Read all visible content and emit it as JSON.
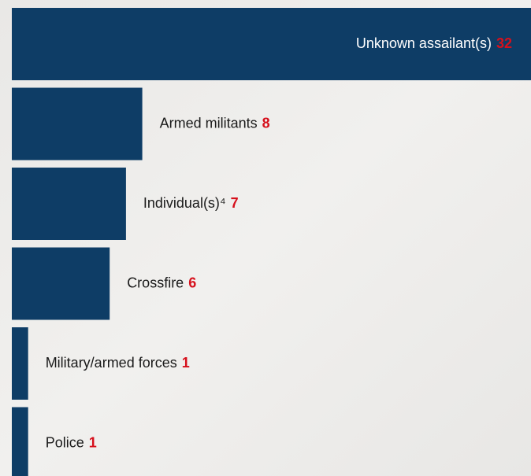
{
  "chart_data": {
    "type": "bar",
    "orientation": "horizontal",
    "categories": [
      "Unknown assailant(s)",
      "Armed militants",
      "Individual(s)⁴",
      "Crossfire",
      "Military/armed forces",
      "Police"
    ],
    "values": [
      32,
      8,
      7,
      6,
      1,
      1
    ],
    "color": "#0e3d66"
  }
}
